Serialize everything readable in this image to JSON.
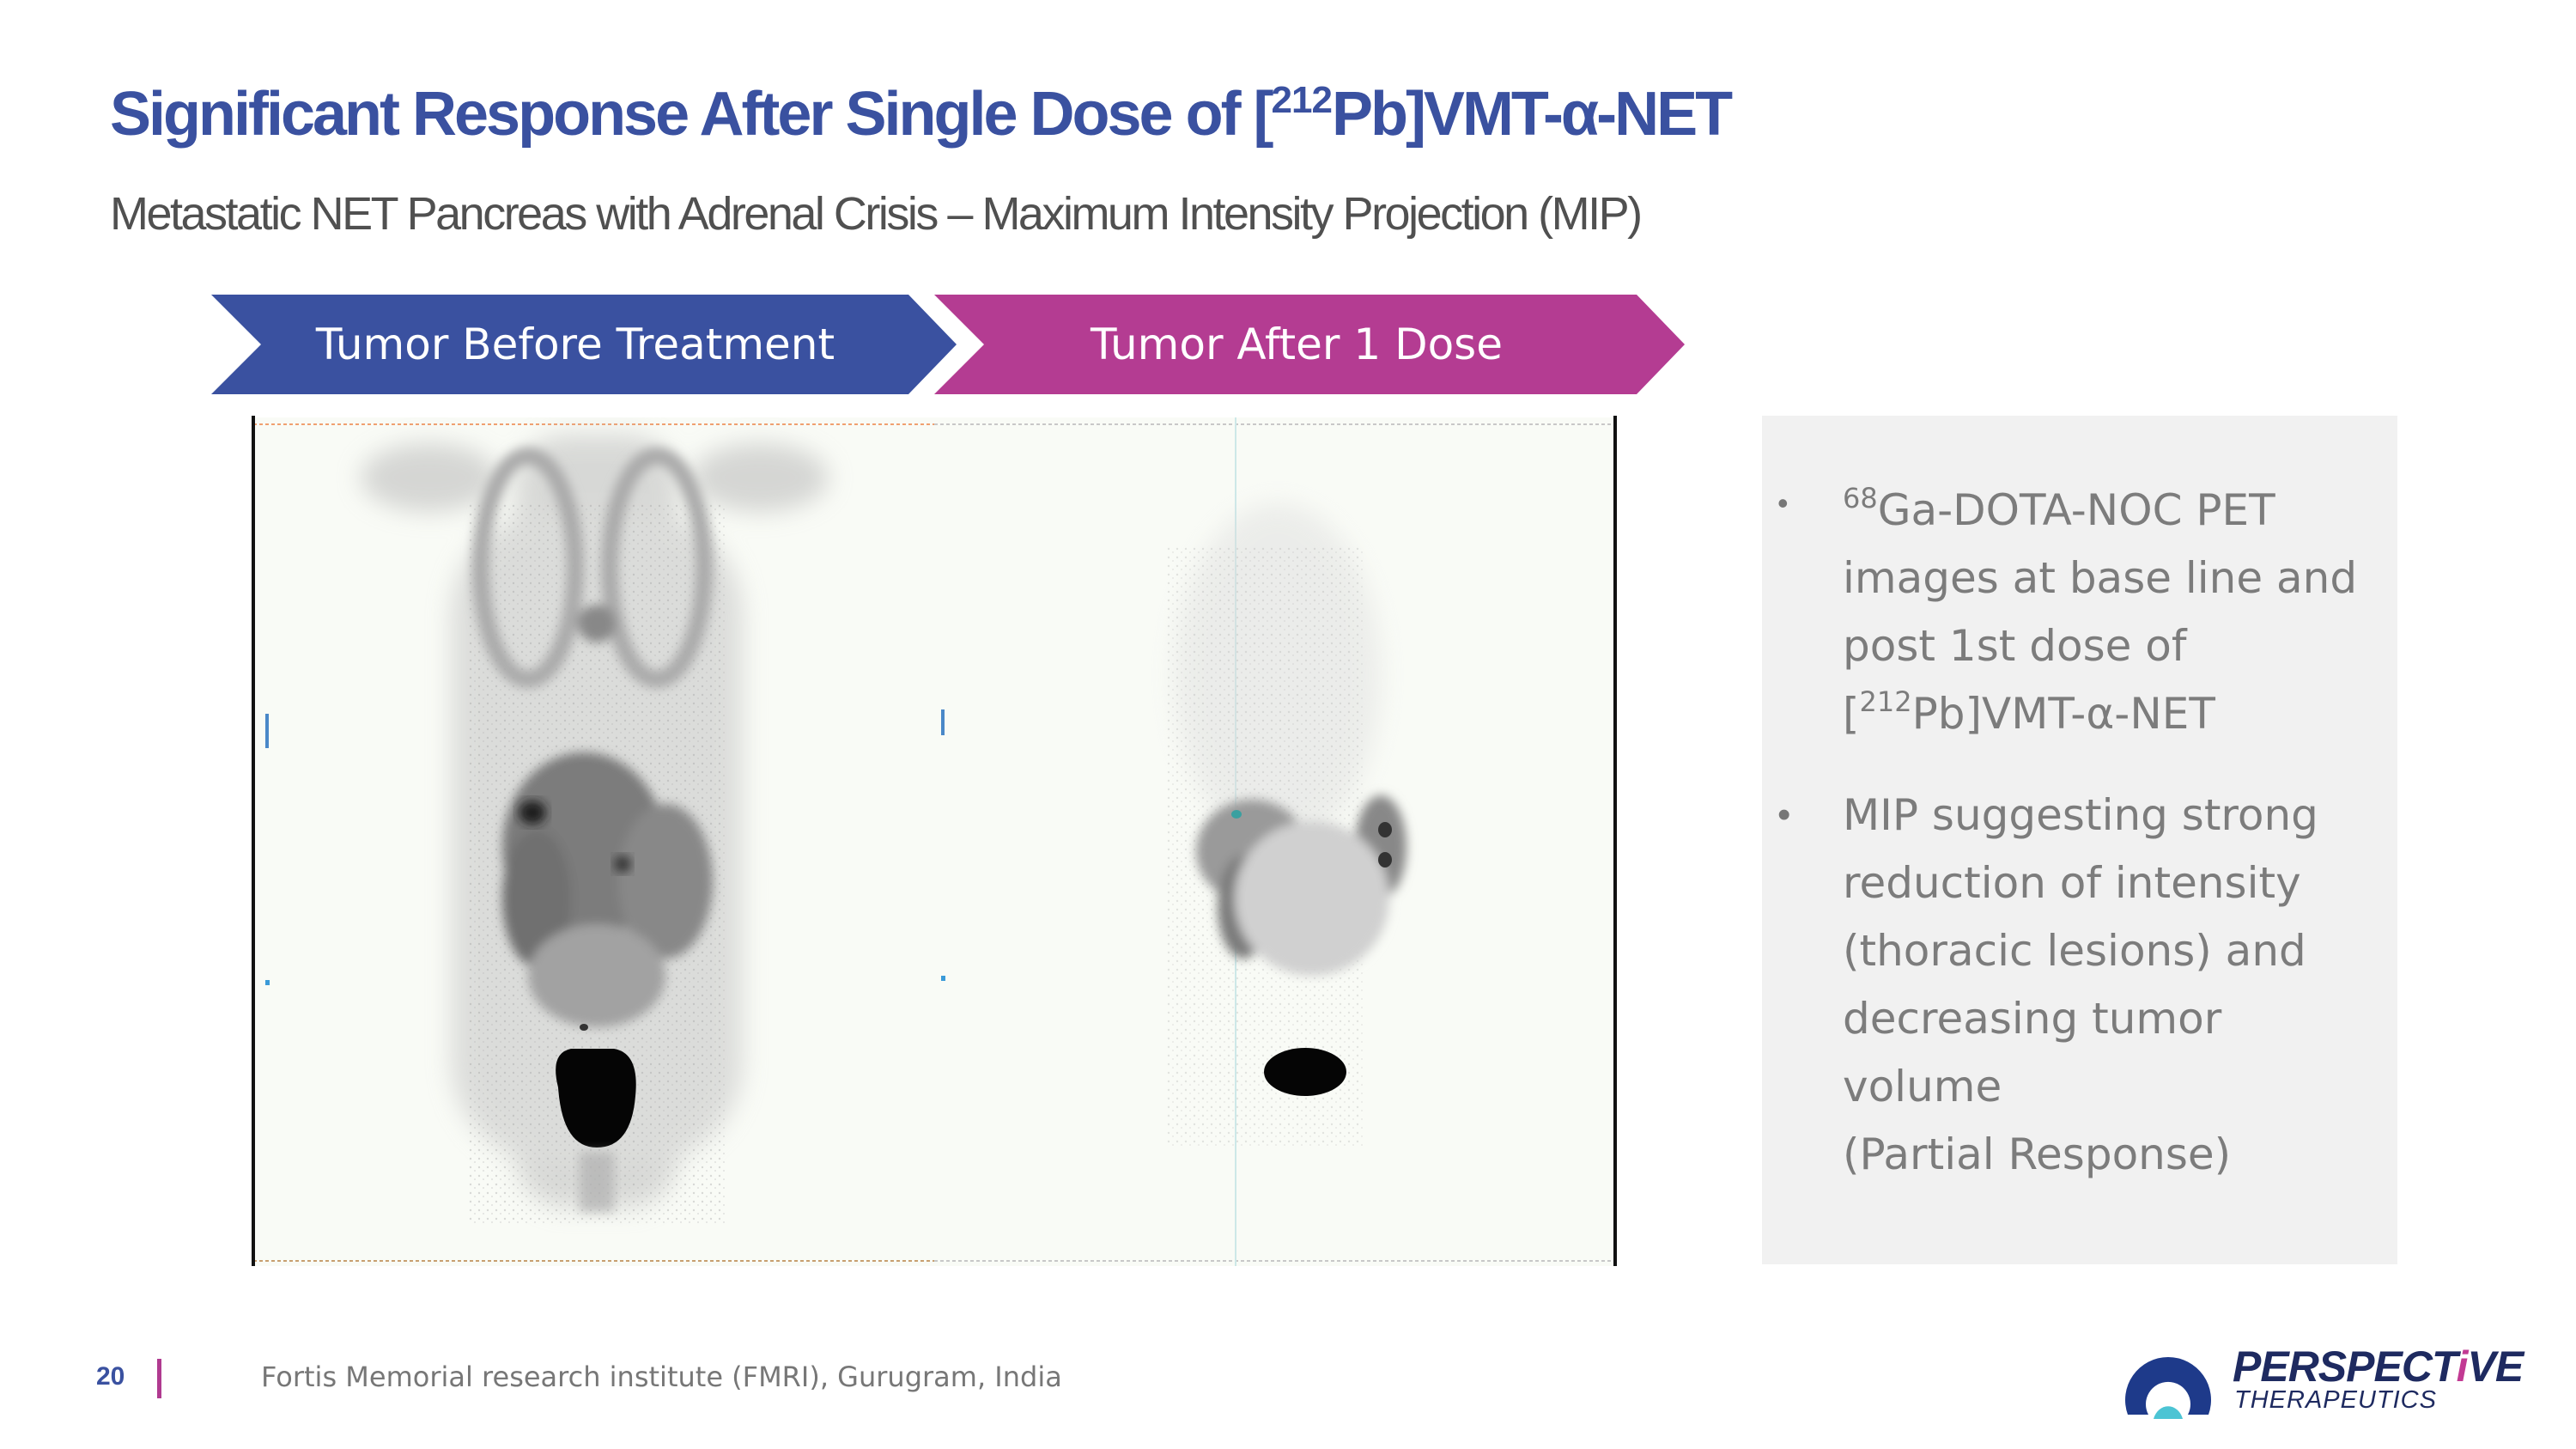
{
  "slide": {
    "title_prefix": "Significant Response After Single Dose of [",
    "title_isotope": "212",
    "title_suffix": "Pb]VMT-α-NET",
    "subtitle": "Metastatic NET Pancreas with Adrenal Crisis – Maximum Intensity Projection (MIP)"
  },
  "chevrons": {
    "before_label": "Tumor Before Treatment",
    "after_label": "Tumor After 1 Dose",
    "before_color": "#3a51a0",
    "after_color": "#b43c92"
  },
  "info": {
    "bullet1": {
      "sup": "68",
      "line1": "Ga-DOTA-NOC PET",
      "line2": "images at base line and",
      "line3": "post 1st dose of",
      "line4_sup": "212",
      "line4_pre": "[",
      "line4_post": "Pb]VMT-α-NET"
    },
    "bullet2": {
      "line1": "MIP suggesting strong",
      "line2": "reduction of intensity",
      "line3": "(thoracic lesions) and",
      "line4": "decreasing tumor volume",
      "line5": "(Partial Response)"
    },
    "bullet_symbol": "•"
  },
  "footer": {
    "page_number": "20",
    "source": "Fortis Memorial research institute (FMRI), Gurugram, India"
  },
  "logo": {
    "word_main": "PERSPECT",
    "word_accent": "i",
    "word_end": "VE",
    "sub": "THERAPEUTICS"
  }
}
